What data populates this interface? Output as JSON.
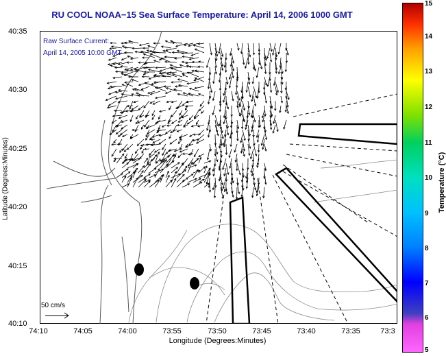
{
  "title": "RU COOL  NOAA−15  Sea Surface Temperature:  April 14, 2006 1000 GMT",
  "overlay": {
    "line1": "Raw Surface Current:",
    "line2": "April 14, 2005 10:00 GMT"
  },
  "axes": {
    "xlabel": "Longitude (Degrees:Minutes)",
    "ylabel": "Latitude (Degrees:Minutes)",
    "xticks": [
      "74:10",
      "74:05",
      "74:00",
      "73:55",
      "73:50",
      "73:45",
      "73:40",
      "73:35",
      "73:3"
    ],
    "yticks": [
      "40:35",
      "40:30",
      "40:25",
      "40:20",
      "40:15",
      "40:10"
    ]
  },
  "scale_label": "50 cm/s",
  "colorbar": {
    "label": "Temperature (°C)",
    "ticks": [
      "15",
      "14",
      "13",
      "12",
      "11",
      "10",
      "9",
      "8",
      "7",
      "6",
      "5"
    ]
  }
}
